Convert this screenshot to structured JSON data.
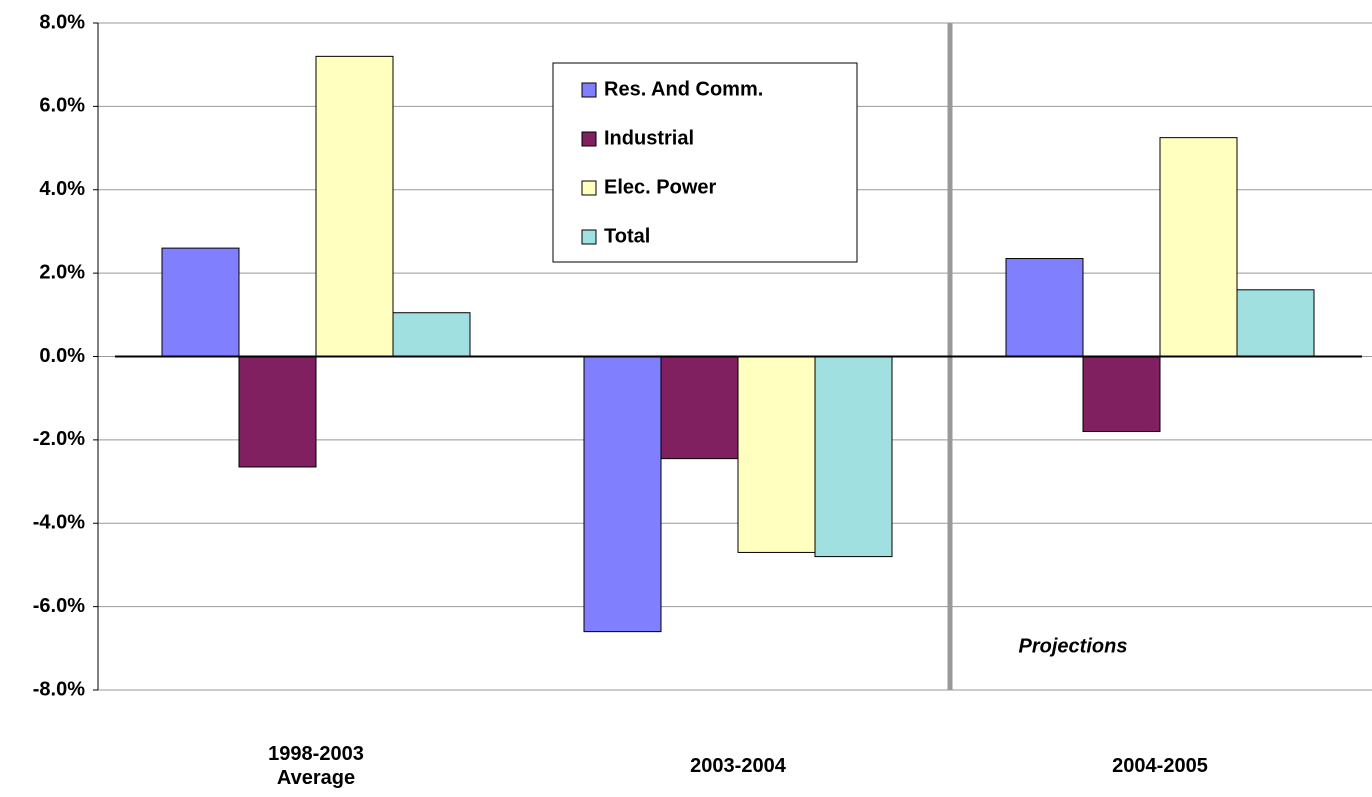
{
  "chart_data": {
    "type": "bar",
    "categories": [
      "1998-2003 Average",
      "2003-2004",
      "2004-2005"
    ],
    "series": [
      {
        "name": "Res. And Comm.",
        "color": "#8080ff",
        "values": [
          2.6,
          -6.6,
          2.35
        ]
      },
      {
        "name": "Industrial",
        "color": "#802060",
        "values": [
          -2.65,
          -2.45,
          -1.8
        ]
      },
      {
        "name": "Elec. Power",
        "color": "#ffffc0",
        "values": [
          7.2,
          -4.7,
          5.25
        ]
      },
      {
        "name": "Total",
        "color": "#a0e0e0",
        "values": [
          1.05,
          -4.8,
          1.6
        ]
      }
    ],
    "ylim": [
      -8,
      8
    ],
    "yticks": [
      {
        "value": -8,
        "label": "-8.0%"
      },
      {
        "value": -6,
        "label": "-6.0%"
      },
      {
        "value": -4,
        "label": "-4.0%"
      },
      {
        "value": -2,
        "label": "-2.0%"
      },
      {
        "value": 0,
        "label": "0.0%"
      },
      {
        "value": 2,
        "label": "2.0%"
      },
      {
        "value": 4,
        "label": "4.0%"
      },
      {
        "value": 6,
        "label": "6.0%"
      },
      {
        "value": 8,
        "label": "8.0%"
      }
    ],
    "grid": true,
    "annotation": "Projections"
  }
}
